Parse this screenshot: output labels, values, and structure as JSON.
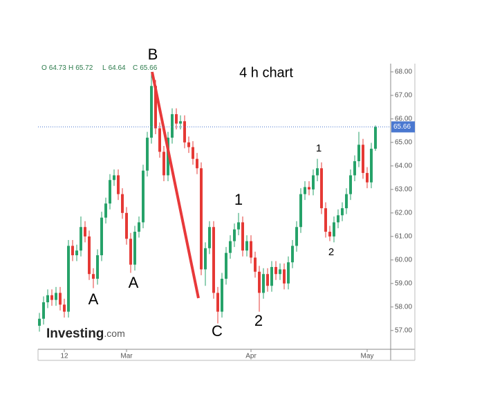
{
  "chart_data": {
    "type": "candlestick",
    "title": "4 h chart",
    "logo": [
      "Investing",
      ".com"
    ],
    "ohlc_labels": [
      "O",
      "H",
      "L",
      "C"
    ],
    "categories": [
      null,
      null,
      null,
      null,
      null,
      null,
      "12",
      null,
      null,
      null,
      null,
      null,
      null,
      null,
      null,
      null,
      null,
      null,
      null,
      null,
      null,
      "Mar",
      null,
      null,
      null,
      null,
      null,
      null,
      null,
      null,
      null,
      null,
      null,
      null,
      null,
      null,
      null,
      null,
      null,
      null,
      null,
      null,
      null,
      null,
      null,
      null,
      null,
      null,
      null,
      null,
      null,
      "Apr",
      null,
      null,
      null,
      null,
      null,
      null,
      null,
      null,
      null,
      null,
      null,
      null,
      null,
      null,
      null,
      null,
      null,
      null,
      null,
      null,
      null,
      null,
      null,
      null,
      null,
      null,
      null,
      "May",
      null,
      null
    ],
    "open": [
      57.2,
      57.5,
      58.2,
      58.5,
      58.3,
      58.6,
      58.1,
      57.8,
      60.6,
      60.2,
      60.4,
      61.4,
      61.0,
      59.4,
      59.2,
      60.2,
      61.8,
      62.4,
      63.4,
      63.6,
      62.8,
      62.0,
      60.9,
      59.8,
      61.2,
      61.6,
      63.8,
      65.2,
      67.4,
      65.6,
      64.6,
      63.6,
      65.2,
      66.2,
      65.8,
      65.9,
      65.0,
      64.8,
      64.3,
      63.9,
      59.6,
      60.5,
      61.4,
      58.6,
      57.8,
      59.2,
      60.3,
      60.8,
      61.3,
      61.6,
      60.4,
      60.8,
      60.1,
      59.5,
      58.6,
      59.4,
      58.9,
      59.7,
      59.4,
      59.6,
      59.0,
      59.9,
      60.6,
      61.4,
      62.8,
      63.1,
      63.0,
      63.6,
      63.9,
      62.2,
      61.2,
      61.0,
      61.6,
      61.9,
      62.2,
      62.8,
      63.6,
      64.2,
      64.9,
      63.7,
      63.3,
      64.73
    ],
    "high": [
      57.75,
      58.45,
      58.75,
      58.75,
      58.85,
      58.85,
      58.35,
      60.85,
      60.85,
      60.65,
      61.85,
      61.65,
      61.25,
      59.65,
      60.45,
      62.05,
      62.65,
      63.65,
      63.85,
      63.85,
      63.05,
      62.25,
      61.15,
      61.45,
      61.85,
      64.05,
      65.45,
      68.0,
      67.65,
      65.85,
      64.85,
      65.45,
      66.45,
      66.45,
      66.15,
      66.15,
      65.25,
      65.05,
      64.55,
      64.15,
      60.75,
      61.65,
      61.65,
      58.85,
      59.45,
      60.55,
      61.05,
      61.55,
      62.0,
      61.85,
      61.05,
      61.05,
      60.35,
      59.75,
      59.65,
      59.65,
      59.95,
      59.95,
      59.85,
      59.85,
      60.15,
      60.85,
      61.65,
      63.05,
      63.35,
      63.35,
      63.85,
      64.3,
      64.15,
      62.45,
      61.45,
      61.85,
      62.15,
      62.45,
      63.05,
      63.85,
      64.45,
      65.45,
      65.15,
      63.95,
      64.98,
      65.72
    ],
    "low": [
      56.95,
      57.25,
      57.95,
      58.05,
      58.05,
      57.85,
      57.55,
      57.55,
      59.95,
      59.95,
      60.15,
      60.75,
      59.15,
      58.8,
      58.95,
      59.95,
      61.55,
      62.15,
      63.15,
      62.55,
      61.75,
      60.65,
      59.45,
      59.55,
      60.95,
      61.35,
      63.55,
      64.95,
      65.35,
      64.35,
      63.35,
      63.35,
      64.95,
      65.55,
      65.55,
      64.75,
      64.55,
      64.05,
      63.65,
      59.35,
      58.9,
      60.25,
      58.35,
      57.3,
      57.55,
      58.95,
      60.05,
      60.55,
      61.05,
      60.15,
      60.15,
      59.85,
      59.25,
      57.8,
      58.35,
      58.65,
      58.65,
      59.15,
      59.15,
      58.75,
      58.75,
      59.65,
      60.35,
      61.15,
      62.55,
      62.75,
      62.75,
      63.35,
      61.95,
      60.95,
      60.8,
      60.75,
      61.35,
      61.65,
      61.95,
      62.55,
      63.35,
      63.95,
      63.45,
      63.05,
      63.05,
      64.64
    ],
    "close": [
      57.5,
      58.2,
      58.5,
      58.3,
      58.6,
      58.1,
      57.8,
      60.6,
      60.2,
      60.4,
      61.4,
      61.0,
      59.4,
      59.2,
      60.2,
      61.8,
      62.4,
      63.4,
      63.6,
      62.8,
      62.0,
      60.9,
      59.8,
      61.2,
      61.6,
      63.8,
      65.2,
      67.4,
      65.6,
      64.6,
      63.6,
      65.2,
      66.2,
      65.8,
      65.9,
      65.0,
      64.8,
      64.3,
      63.9,
      59.6,
      60.5,
      61.4,
      58.6,
      57.8,
      59.2,
      60.3,
      60.8,
      61.3,
      61.6,
      60.4,
      60.8,
      60.1,
      59.5,
      58.6,
      59.4,
      58.9,
      59.7,
      59.4,
      59.6,
      59.0,
      59.9,
      60.6,
      61.4,
      62.8,
      63.1,
      63.0,
      63.6,
      63.9,
      62.2,
      61.2,
      61.0,
      61.6,
      61.9,
      62.2,
      62.8,
      63.6,
      64.2,
      64.9,
      63.7,
      63.3,
      64.73,
      65.66
    ],
    "up_color": "#26a269",
    "down_color": "#e53935",
    "last_price_color": "#4a78d0",
    "ylim": [
      56.2,
      68.35
    ],
    "yticks": [
      {
        "value": 57,
        "label": "57.00"
      },
      {
        "value": 58,
        "label": "58.00"
      },
      {
        "value": 59,
        "label": "59.00"
      },
      {
        "value": 60,
        "label": "60.00"
      },
      {
        "value": 61,
        "label": "61.00"
      },
      {
        "value": 62,
        "label": "62.00"
      },
      {
        "value": 63,
        "label": "63.00"
      },
      {
        "value": 64,
        "label": "64.00"
      },
      {
        "value": 65,
        "label": "65.00"
      },
      {
        "value": 66,
        "label": "66.00"
      },
      {
        "value": 67,
        "label": "67.00"
      },
      {
        "value": 68,
        "label": "68.00"
      }
    ],
    "annotations": [
      "B",
      "A",
      "A",
      "C",
      "1",
      "2",
      "1",
      "2"
    ]
  }
}
